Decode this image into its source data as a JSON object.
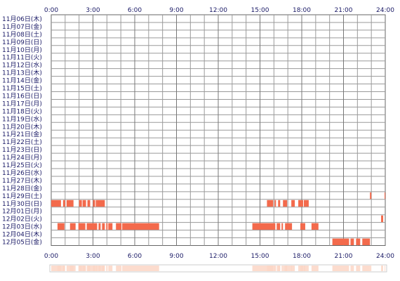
{
  "chart_data": {
    "type": "heatmap",
    "x_ticks": [
      "0:00",
      "3:00",
      "6:00",
      "9:00",
      "12:00",
      "15:00",
      "18:00",
      "21:00",
      "24:00"
    ],
    "xlim_hours": [
      0,
      24
    ],
    "rows": [
      {
        "label": "11月06日(木)",
        "segments": []
      },
      {
        "label": "11月07日(金)",
        "segments": []
      },
      {
        "label": "11月08日(土)",
        "segments": []
      },
      {
        "label": "11月09日(日)",
        "segments": []
      },
      {
        "label": "11月10日(月)",
        "segments": []
      },
      {
        "label": "11月11日(火)",
        "segments": []
      },
      {
        "label": "11月12日(水)",
        "segments": []
      },
      {
        "label": "11月13日(木)",
        "segments": []
      },
      {
        "label": "11月14日(金)",
        "segments": []
      },
      {
        "label": "11月15日(土)",
        "segments": []
      },
      {
        "label": "11月16日(日)",
        "segments": []
      },
      {
        "label": "11月17日(月)",
        "segments": []
      },
      {
        "label": "11月18日(火)",
        "segments": []
      },
      {
        "label": "11月19日(水)",
        "segments": []
      },
      {
        "label": "11月20日(木)",
        "segments": []
      },
      {
        "label": "11月21日(金)",
        "segments": []
      },
      {
        "label": "11月22日(土)",
        "segments": []
      },
      {
        "label": "11月23日(日)",
        "segments": []
      },
      {
        "label": "11月24日(月)",
        "segments": []
      },
      {
        "label": "11月25日(火)",
        "segments": []
      },
      {
        "label": "11月26日(水)",
        "segments": []
      },
      {
        "label": "11月27日(木)",
        "segments": []
      },
      {
        "label": "11月28日(金)",
        "segments": []
      },
      {
        "label": "11月29日(土)",
        "segments": [
          [
            22.9,
            23.0
          ],
          [
            23.95,
            24.0
          ]
        ]
      },
      {
        "label": "11月30日(日)",
        "segments": [
          [
            0.0,
            0.7
          ],
          [
            0.85,
            1.0
          ],
          [
            1.1,
            1.6
          ],
          [
            2.0,
            2.2
          ],
          [
            2.25,
            2.5
          ],
          [
            2.6,
            2.8
          ],
          [
            3.0,
            3.1
          ],
          [
            3.2,
            3.3
          ],
          [
            3.05,
            3.15
          ],
          [
            3.3,
            3.85
          ],
          [
            15.5,
            15.95
          ],
          [
            16.05,
            16.15
          ],
          [
            16.3,
            16.45
          ],
          [
            16.65,
            16.95
          ],
          [
            17.25,
            17.5
          ],
          [
            17.75,
            18.1
          ],
          [
            18.15,
            18.5
          ]
        ]
      },
      {
        "label": "12月01日(月)",
        "segments": []
      },
      {
        "label": "12月02日(火)",
        "segments": [
          [
            23.7,
            23.85
          ]
        ]
      },
      {
        "label": "12月03日(水)",
        "segments": [
          [
            0.45,
            0.95
          ],
          [
            1.35,
            1.75
          ],
          [
            1.95,
            2.45
          ],
          [
            2.55,
            3.3
          ],
          [
            3.4,
            3.55
          ],
          [
            3.65,
            3.85
          ],
          [
            3.95,
            4.05
          ],
          [
            4.1,
            4.4
          ],
          [
            4.65,
            5.05
          ],
          [
            5.1,
            7.75
          ],
          [
            14.45,
            16.1
          ],
          [
            16.2,
            16.45
          ],
          [
            16.55,
            16.65
          ],
          [
            16.8,
            17.3
          ],
          [
            17.9,
            18.25
          ],
          [
            18.7,
            19.2
          ]
        ]
      },
      {
        "label": "12月04日(木)",
        "segments": []
      },
      {
        "label": "12月05日(金)",
        "segments": [
          [
            20.2,
            21.4
          ],
          [
            21.5,
            21.75
          ],
          [
            21.9,
            22.2
          ],
          [
            22.35,
            22.9
          ]
        ]
      }
    ]
  }
}
